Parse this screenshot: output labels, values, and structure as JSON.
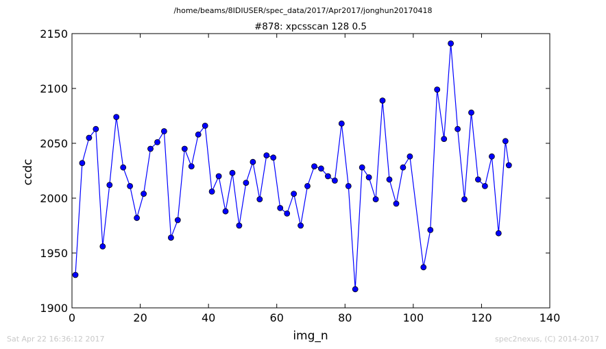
{
  "path_title": "/home/beams/8IDIUSER/spec_data/2017/Apr2017/jonghun20170418",
  "footer": {
    "timestamp": "Sat Apr 22 16:36:12 2017",
    "credit": "spec2nexus, (C) 2014-2017"
  },
  "colors": {
    "series": "#0000ff",
    "marker_edge": "#000000"
  },
  "chart_data": {
    "type": "line",
    "title": "#878: xpcsscan 128 0.5",
    "xlabel": "img_n",
    "ylabel": "ccdc",
    "xlim": [
      0,
      140
    ],
    "ylim": [
      1900,
      2150
    ],
    "xticks": [
      0,
      20,
      40,
      60,
      80,
      100,
      120,
      140
    ],
    "yticks": [
      1900,
      1950,
      2000,
      2050,
      2100,
      2150
    ],
    "grid": false,
    "marker": "circle",
    "series": [
      {
        "x": [
          1,
          3,
          5,
          7,
          9,
          11,
          13,
          15,
          17,
          19,
          21,
          23,
          25,
          27,
          29,
          31,
          33,
          35,
          37,
          39,
          41,
          43,
          45,
          47,
          49,
          51,
          53,
          55,
          57,
          59,
          61,
          63,
          65,
          67,
          69,
          71,
          73,
          75,
          77,
          79,
          81,
          83,
          85,
          87,
          89,
          91,
          93,
          95,
          97,
          99,
          103,
          105,
          107,
          109,
          111,
          113,
          115,
          117,
          119,
          121,
          123,
          125,
          127,
          128
        ],
        "y": [
          1930,
          2032,
          2055,
          2063,
          1956,
          2012,
          2074,
          2028,
          2011,
          1982,
          2004,
          2045,
          2051,
          2061,
          1964,
          1980,
          2045,
          2029,
          2058,
          2066,
          2006,
          2020,
          1988,
          2023,
          1975,
          2014,
          2033,
          1999,
          2039,
          2037,
          1991,
          1986,
          2004,
          1975,
          2011,
          2029,
          2027,
          2020,
          2016,
          2068,
          2011,
          1917,
          2028,
          2019,
          1999,
          2089,
          2017,
          1995,
          2028,
          2038,
          1937,
          1971,
          2099,
          2054,
          2141,
          2063,
          1999,
          2078,
          2017,
          2011,
          2038,
          1968,
          2052,
          2030
        ]
      }
    ]
  }
}
